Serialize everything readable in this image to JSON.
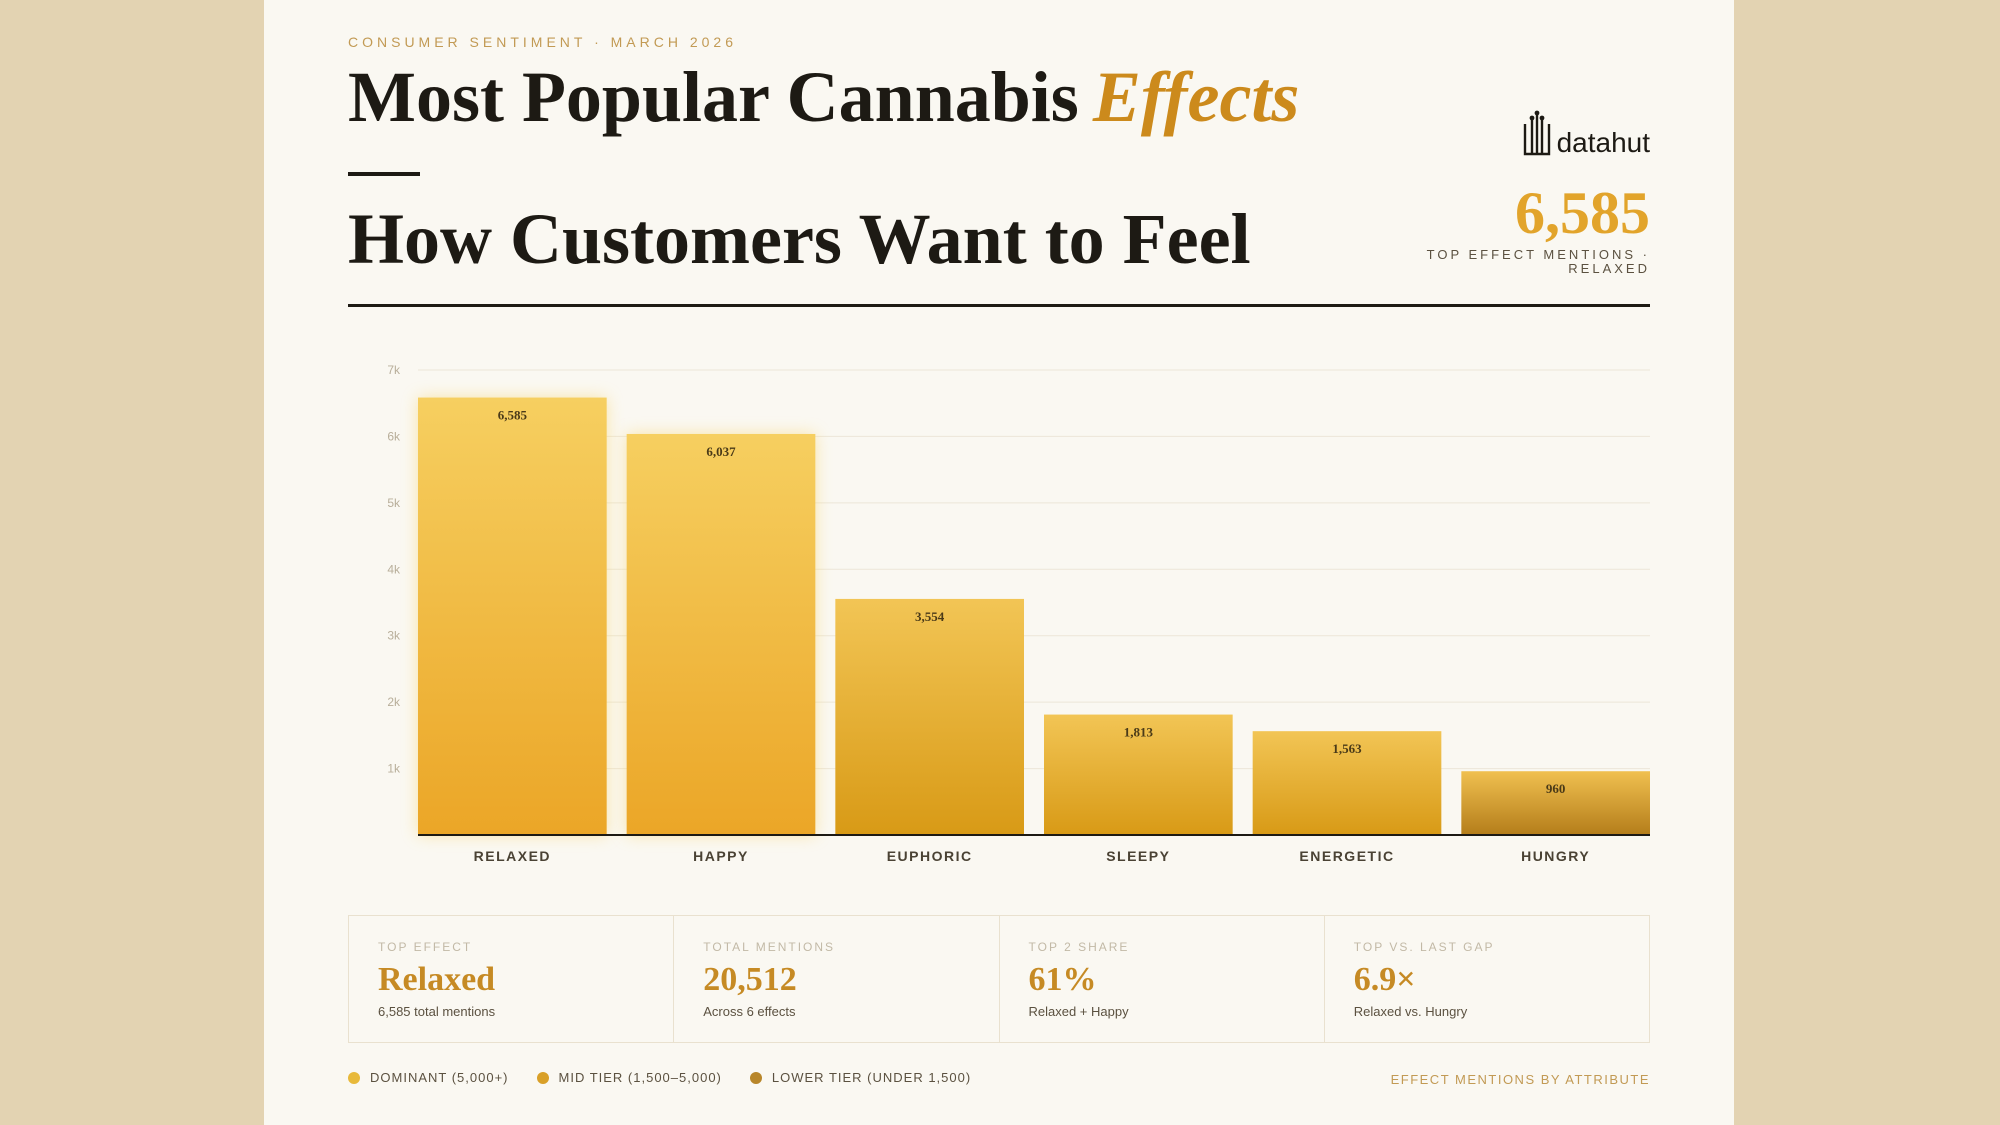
{
  "header": {
    "kicker": "CONSUMER SENTIMENT · MARCH 2026",
    "title_main": "Most Popular Cannabis",
    "title_accent": "Effects",
    "subtitle": "How Customers Want to Feel"
  },
  "brand": {
    "logo_text": "datahut"
  },
  "hero": {
    "value": "6,585",
    "label": "TOP EFFECT MENTIONS · RELAXED"
  },
  "kpis": [
    {
      "label": "TOP EFFECT",
      "value": "Relaxed",
      "sub": "6,585 total mentions"
    },
    {
      "label": "TOTAL MENTIONS",
      "value": "20,512",
      "sub": "Across 6 effects"
    },
    {
      "label": "TOP 2 SHARE",
      "value": "61%",
      "sub": "Relaxed + Happy"
    },
    {
      "label": "TOP VS. LAST GAP",
      "value": "6.9×",
      "sub": "Relaxed vs. Hungry"
    }
  ],
  "legend": [
    {
      "label": "DOMINANT (5,000+)",
      "color": "#e8b93a"
    },
    {
      "label": "MID TIER (1,500–5,000)",
      "color": "#d9a028"
    },
    {
      "label": "LOWER TIER (UNDER 1,500)",
      "color": "#b8862a"
    }
  ],
  "footnote": "EFFECT MENTIONS BY ATTRIBUTE",
  "chart_data": {
    "type": "bar",
    "categories": [
      "RELAXED",
      "HAPPY",
      "EUPHORIC",
      "SLEEPY",
      "ENERGETIC",
      "HUNGRY"
    ],
    "values": [
      6585,
      6037,
      3554,
      1813,
      1563,
      960
    ],
    "value_labels": [
      "6,585",
      "6,037",
      "3,554",
      "1,813",
      "1,563",
      "960"
    ],
    "ylim": [
      0,
      7000
    ],
    "yticks": [
      1000,
      2000,
      3000,
      4000,
      5000,
      6000,
      7000
    ],
    "ytick_labels": [
      "1k",
      "2k",
      "3k",
      "4k",
      "5k",
      "6k",
      "7k"
    ],
    "grid": true,
    "colors": {
      "dominant_top": "#f6cf60",
      "dominant_bottom": "#eba627",
      "mid_top": "#f2c555",
      "mid_bottom": "#d89a16",
      "lower_top": "#f0c050",
      "lower_bottom": "#b47d1a"
    }
  }
}
